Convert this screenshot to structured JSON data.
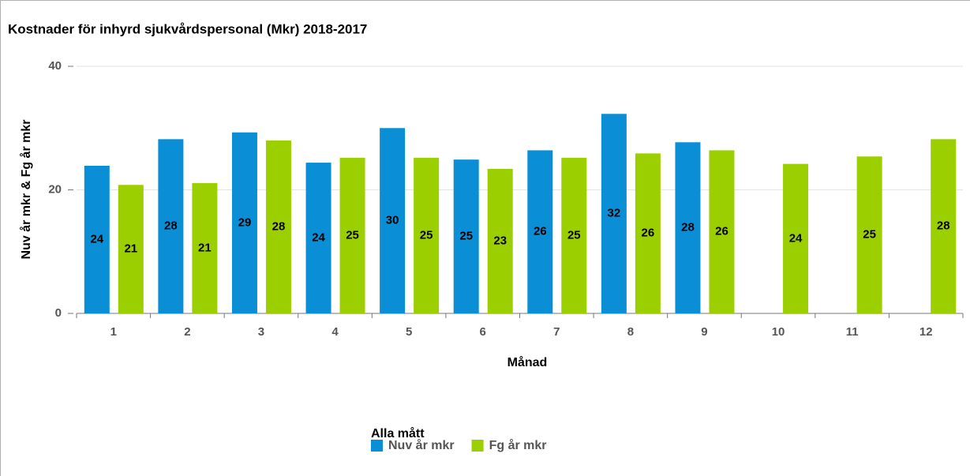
{
  "chart_data": {
    "type": "bar",
    "title": "Kostnader för inhyrd sjukvårdspersonal (Mkr) 2018-2017",
    "x_label": "Månad",
    "y_label": "Nuv år mkr & Fg år mkr",
    "legend_title": "Alla mått",
    "categories": [
      "1",
      "2",
      "3",
      "4",
      "5",
      "6",
      "7",
      "8",
      "9",
      "10",
      "11",
      "12"
    ],
    "series": [
      {
        "name": "Nuv år mkr",
        "color": "#0a8fd6",
        "values": [
          23.9,
          28.2,
          29.3,
          24.4,
          30.0,
          24.9,
          26.4,
          32.3,
          27.7,
          null,
          null,
          null
        ],
        "value_labels": [
          "24",
          "28",
          "29",
          "24",
          "30",
          "25",
          "26",
          "32",
          "28",
          null,
          null,
          null
        ]
      },
      {
        "name": "Fg år mkr",
        "color": "#9ccf00",
        "values": [
          20.8,
          21.1,
          28.0,
          25.2,
          25.2,
          23.4,
          25.2,
          25.9,
          26.4,
          24.2,
          25.4,
          28.2
        ],
        "value_labels": [
          "21",
          "21",
          "28",
          "25",
          "25",
          "23",
          "25",
          "26",
          "26",
          "24",
          "25",
          "28"
        ]
      }
    ],
    "ylim": [
      0,
      40
    ],
    "yticks": [
      0,
      20,
      40
    ],
    "grid": true
  }
}
